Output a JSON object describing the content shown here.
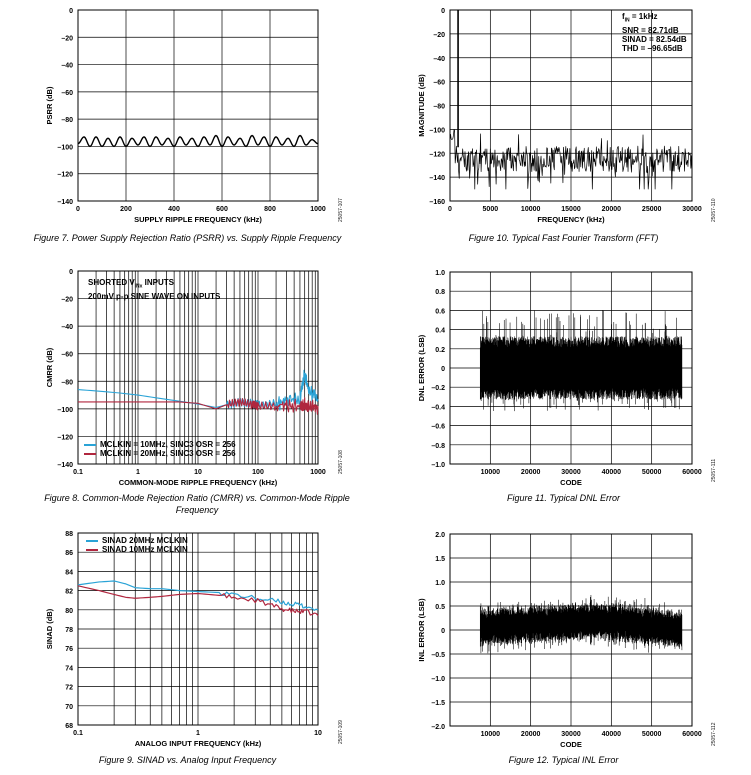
{
  "figures": [
    {
      "id": "fig7",
      "caption": "Figure 7. Power Supply Rejection Ratio (PSRR) vs. Supply Ripple Frequency",
      "doc_id": "25057-107",
      "chart_data": {
        "type": "line",
        "xlabel": "SUPPLY RIPPLE FREQUENCY (kHz)",
        "ylabel": "PSRR (dB)",
        "xlim": [
          0,
          1000
        ],
        "ylim": [
          -140,
          0
        ],
        "xticks": [
          0,
          200,
          400,
          600,
          800,
          1000
        ],
        "xtick_labels": [
          "0",
          "200",
          "400",
          "600",
          "800",
          "1000"
        ],
        "yticks": [
          0,
          -20,
          -40,
          -60,
          -80,
          -100,
          -120,
          -140
        ],
        "ytick_labels": [
          "0",
          "–20",
          "–40",
          "–60",
          "–80",
          "–100",
          "–120",
          "–140"
        ],
        "grid": true,
        "series": [
          {
            "color": "#000000",
            "x": [
              0,
              25,
              50,
              75,
              100,
              125,
              150,
              175,
              200,
              225,
              250,
              275,
              300,
              325,
              350,
              375,
              400,
              425,
              450,
              475,
              500,
              525,
              550,
              575,
              600,
              625,
              650,
              675,
              700,
              725,
              750,
              775,
              800,
              825,
              850,
              875,
              900,
              925,
              950,
              975,
              1000
            ],
            "y": [
              -98,
              -93,
              -100,
              -93,
              -100,
              -94,
              -100,
              -93,
              -100,
              -94,
              -99,
              -93,
              -100,
              -93,
              -99,
              -94,
              -100,
              -93,
              -99,
              -94,
              -100,
              -93,
              -99,
              -92,
              -100,
              -93,
              -99,
              -94,
              -100,
              -92,
              -99,
              -93,
              -100,
              -93,
              -99,
              -94,
              -100,
              -92,
              -99,
              -95,
              -98
            ]
          }
        ]
      }
    },
    {
      "id": "fig10",
      "caption": "Figure 10. Typical Fast Fourier Transform (FFT)",
      "doc_id": "25057-110",
      "annotation": {
        "line1_main": "f",
        "line1_sub": "IN",
        "line1_rest": " = 1kHz",
        "line2": "SNR = 82.71dB",
        "line3": "SINAD = 82.54dB",
        "line4": "THD = –96.65dB"
      },
      "chart_data": {
        "type": "line",
        "xlabel": "FREQUENCY (kHz)",
        "ylabel": "MAGNITUDE (dB)",
        "xlim": [
          0,
          30000
        ],
        "ylim": [
          -160,
          0
        ],
        "xticks": [
          0,
          5000,
          10000,
          15000,
          20000,
          25000,
          30000
        ],
        "xtick_labels": [
          "0",
          "5000",
          "10000",
          "15000",
          "20000",
          "25000",
          "30000"
        ],
        "yticks": [
          0,
          -20,
          -40,
          -60,
          -80,
          -100,
          -120,
          -140,
          -160
        ],
        "ytick_labels": [
          "0",
          "–20",
          "–40",
          "–60",
          "–80",
          "–100",
          "–120",
          "–140",
          "–160"
        ],
        "grid": true,
        "tone": {
          "x": 1000,
          "y": 0
        },
        "noise_floor": {
          "x_range": [
            0,
            30000
          ],
          "mean": -125,
          "min": -150,
          "max": -100
        },
        "series": [
          {
            "color": "#000000"
          }
        ]
      }
    },
    {
      "id": "fig8",
      "caption": "Figure 8. Common-Mode Rejection Ratio (CMRR) vs. Common-Mode Ripple Frequency",
      "doc_id": "25057-108",
      "annotation": {
        "line1_main": "SHORTED V",
        "line1_sub": "INx",
        "line1_rest": " INPUTS",
        "line2": "200mV p-p SINE WAVE ON INPUTS"
      },
      "chart_data": {
        "type": "line",
        "xscale": "log",
        "xlabel": "COMMON-MODE RIPPLE FREQUENCY (kHz)",
        "ylabel": "CMRR (dB)",
        "xlim": [
          0.1,
          1000
        ],
        "ylim": [
          -140,
          0
        ],
        "xticks": [
          0.1,
          1,
          10,
          100,
          1000
        ],
        "xtick_labels": [
          "0.1",
          "1",
          "10",
          "100",
          "1000"
        ],
        "yticks": [
          0,
          -20,
          -40,
          -60,
          -80,
          -100,
          -120,
          -140
        ],
        "ytick_labels": [
          "0",
          "–20",
          "–40",
          "–60",
          "–80",
          "–100",
          "–120",
          "–140"
        ],
        "grid": true,
        "legend": "bottom-left",
        "series": [
          {
            "name": "MCLKIN = 10MHz, SINC3 OSR = 256",
            "color": "#2aa3d6",
            "x": [
              0.1,
              0.2,
              0.5,
              1,
              2,
              5,
              10,
              20,
              30,
              50,
              80,
              100,
              200,
              300,
              500,
              600,
              700,
              1000
            ],
            "y": [
              -86,
              -87,
              -88.5,
              -90,
              -92,
              -94.5,
              -96.5,
              -99,
              -97,
              -95,
              -96,
              -97,
              -96,
              -95,
              -93,
              -75,
              -86,
              -93
            ]
          },
          {
            "name": "MCLKIN = 20MHz, SINC3 OSR = 256",
            "color": "#b0263e",
            "x": [
              0.1,
              0.2,
              0.5,
              1,
              2,
              5,
              10,
              20,
              30,
              50,
              80,
              100,
              200,
              300,
              500,
              600,
              700,
              1000
            ],
            "y": [
              -95,
              -95,
              -95,
              -95,
              -95,
              -95,
              -96,
              -100,
              -97,
              -95,
              -97,
              -98,
              -98,
              -97,
              -98,
              -97,
              -99,
              -98
            ]
          }
        ]
      }
    },
    {
      "id": "fig11",
      "caption": "Figure 11. Typical DNL Error",
      "doc_id": "25057-111",
      "chart_data": {
        "type": "line",
        "xlabel": "CODE",
        "ylabel": "DNL ERROR (LSB)",
        "xlim": [
          0,
          60000
        ],
        "ylim": [
          -1.0,
          1.0
        ],
        "xticks": [
          10000,
          20000,
          30000,
          40000,
          50000,
          60000
        ],
        "xtick_labels": [
          "10000",
          "20000",
          "30000",
          "40000",
          "50000",
          "60000"
        ],
        "yticks": [
          1.0,
          0.8,
          0.6,
          0.4,
          0.2,
          0,
          -0.2,
          -0.4,
          -0.6,
          -0.8,
          -1.0
        ],
        "ytick_labels": [
          "1.0",
          "0.8",
          "0.6",
          "0.4",
          "0.2",
          "0",
          "–0.2",
          "–0.4",
          "–0.6",
          "–0.8",
          "–1.0"
        ],
        "grid": true,
        "noise_band": {
          "x_range": [
            7500,
            57500
          ],
          "min": -0.45,
          "max": 0.6,
          "typical": 0.3
        },
        "series": [
          {
            "color": "#000000"
          }
        ]
      }
    },
    {
      "id": "fig9",
      "caption": "Figure 9. SINAD vs. Analog Input Frequency",
      "doc_id": "25057-109",
      "chart_data": {
        "type": "line",
        "xscale": "log",
        "xlabel": "ANALOG INPUT FREQUENCY (kHz)",
        "ylabel": "SINAD (dB)",
        "xlim": [
          0.1,
          10
        ],
        "ylim": [
          68,
          88
        ],
        "xticks": [
          0.1,
          1,
          10
        ],
        "xtick_labels": [
          "0.1",
          "1",
          "10"
        ],
        "yticks": [
          88,
          86,
          84,
          82,
          80,
          78,
          76,
          74,
          72,
          70,
          68
        ],
        "ytick_labels": [
          "88",
          "86",
          "84",
          "82",
          "80",
          "78",
          "76",
          "74",
          "72",
          "70",
          "68"
        ],
        "grid": true,
        "legend": "top-left",
        "series": [
          {
            "name": "SINAD 20MHz MCLKIN",
            "color": "#2aa3d6",
            "x": [
              0.1,
              0.15,
              0.2,
              0.25,
              0.3,
              0.4,
              0.5,
              0.7,
              1,
              1.5,
              2,
              3,
              4,
              5,
              6,
              7,
              8,
              10
            ],
            "y": [
              82.6,
              82.9,
              83.0,
              82.7,
              82.3,
              82.2,
              82.2,
              82.0,
              81.9,
              81.8,
              81.6,
              81.2,
              81.0,
              80.8,
              80.6,
              80.5,
              80.3,
              80.0
            ]
          },
          {
            "name": "SINAD 10MHz MCLKIN",
            "color": "#b0263e",
            "x": [
              0.1,
              0.15,
              0.2,
              0.25,
              0.3,
              0.4,
              0.5,
              0.7,
              1,
              1.5,
              2,
              3,
              4,
              5,
              6,
              7,
              8,
              10
            ],
            "y": [
              82.5,
              82.0,
              81.6,
              81.3,
              81.2,
              81.3,
              81.4,
              81.6,
              81.7,
              81.5,
              81.3,
              81.0,
              80.5,
              80.1,
              79.9,
              79.8,
              79.8,
              79.4
            ]
          }
        ]
      }
    },
    {
      "id": "fig12",
      "caption": "Figure 12. Typical INL Error",
      "doc_id": "25057-112",
      "chart_data": {
        "type": "line",
        "xlabel": "CODE",
        "ylabel": "INL ERROR (LSB)",
        "xlim": [
          0,
          60000
        ],
        "ylim": [
          -2.0,
          2.0
        ],
        "xticks": [
          10000,
          20000,
          30000,
          40000,
          50000,
          60000
        ],
        "xtick_labels": [
          "10000",
          "20000",
          "30000",
          "40000",
          "50000",
          "60000"
        ],
        "yticks": [
          2.0,
          1.5,
          1.0,
          0.5,
          0,
          -0.5,
          -1.0,
          -1.5,
          -2.0
        ],
        "ytick_labels": [
          "2.0",
          "1.5",
          "1.0",
          "0.5",
          "0",
          "–0.5",
          "–1.0",
          "–1.5",
          "–2.0"
        ],
        "grid": true,
        "noise_band": {
          "x_range": [
            7500,
            57500
          ],
          "center_start": 0.05,
          "center_mid": 0.2,
          "center_end": 0.0,
          "half_width": 0.35
        },
        "series": [
          {
            "color": "#000000"
          }
        ]
      }
    }
  ]
}
